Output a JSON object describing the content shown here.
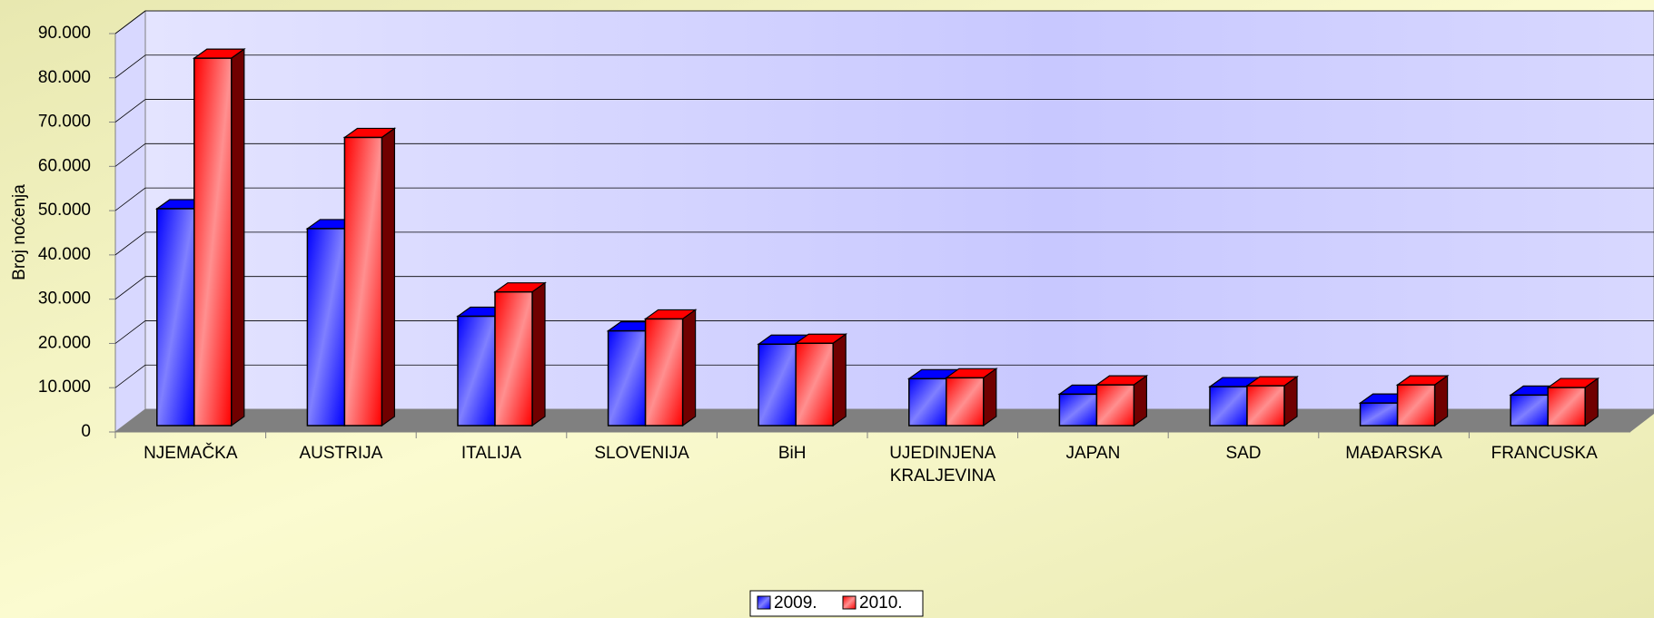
{
  "chart_data": {
    "type": "bar3d",
    "y_label": "Broj noćenja",
    "categories": [
      "NJEMAČKA",
      "AUSTRIJA",
      "ITALIJA",
      "SLOVENIJA",
      "BiH",
      "UJEDINJENA KRALJEVINA",
      "JAPAN",
      "SAD",
      "MAĐARSKA",
      "FRANCUSKA"
    ],
    "series": [
      {
        "name": "2009.",
        "color": "#0000ff",
        "values": [
          49000,
          44500,
          24700,
          21400,
          18400,
          10600,
          7100,
          8800,
          5100,
          6900
        ]
      },
      {
        "name": "2010.",
        "color": "#ff0000",
        "values": [
          83000,
          65100,
          30200,
          24100,
          18600,
          10800,
          9200,
          9000,
          9200,
          8600
        ]
      }
    ],
    "ylim": [
      0,
      90000
    ],
    "yticks": [
      0,
      {
        "value": 10000,
        "label": "10.000"
      },
      {
        "value": 20000,
        "label": "20.000"
      },
      {
        "value": 30000,
        "label": "30.000"
      },
      {
        "value": 40000,
        "label": "40.000"
      },
      {
        "value": 50000,
        "label": "50.000"
      },
      {
        "value": 60000,
        "label": "60.000"
      },
      {
        "value": 70000,
        "label": "70.000"
      },
      {
        "value": 80000,
        "label": "80.000"
      },
      {
        "value": 90000,
        "label": "90.000"
      }
    ],
    "grid": true,
    "legend": "bottom"
  }
}
